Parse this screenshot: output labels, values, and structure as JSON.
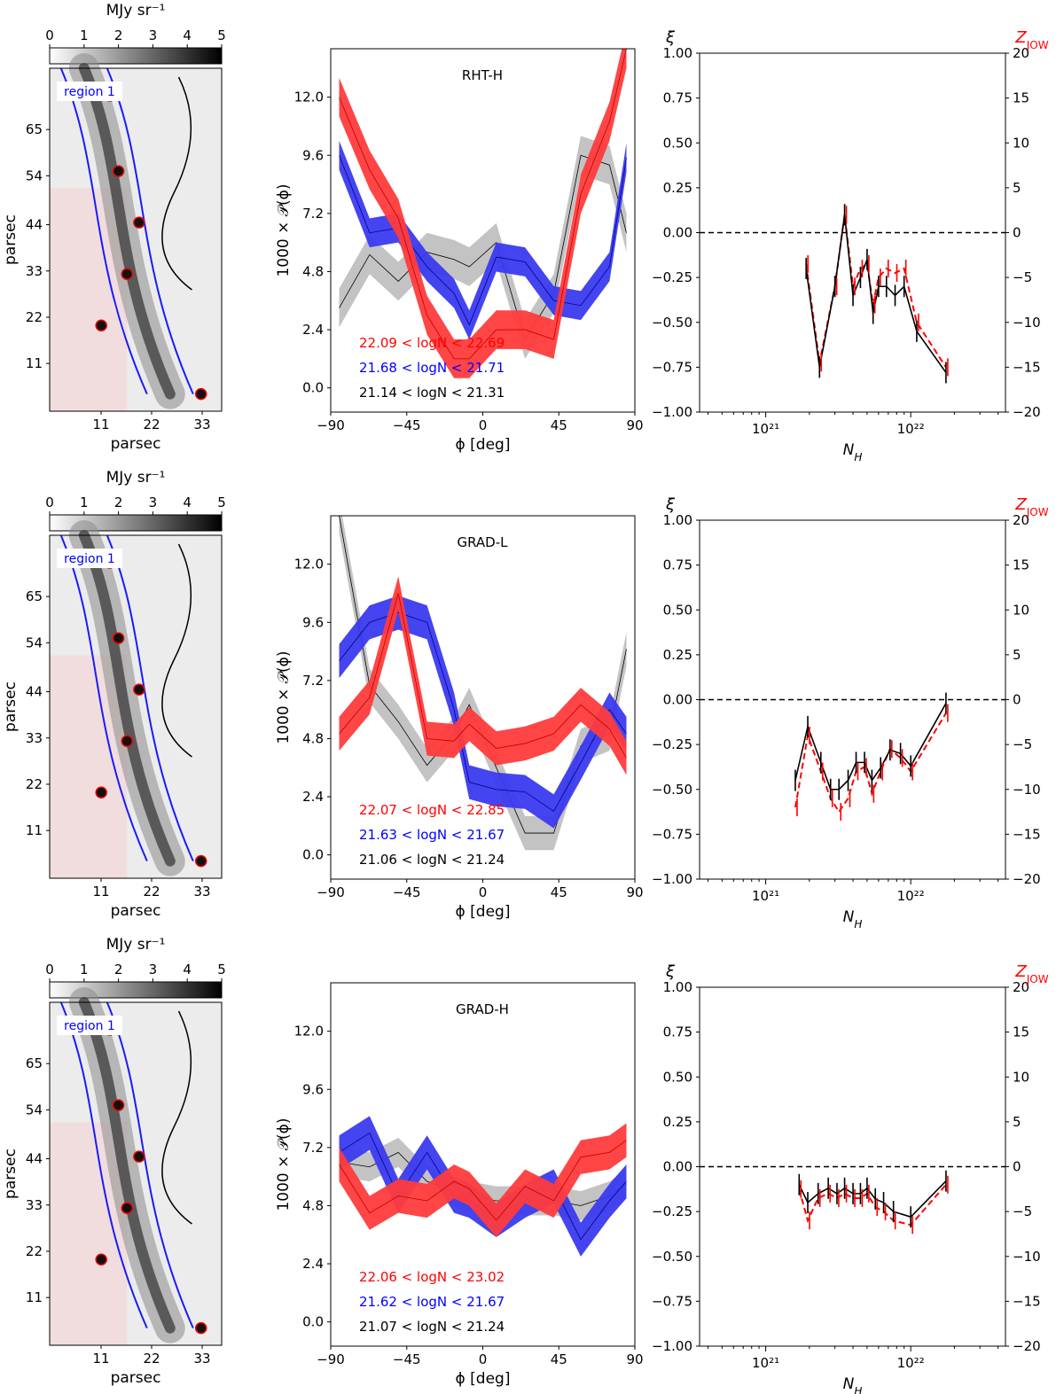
{
  "colorbar": {
    "label": "MJy sr⁻¹",
    "ticks": [
      "0",
      "1",
      "2",
      "3",
      "4",
      "5"
    ]
  },
  "maps": {
    "region_label": "region 1",
    "xlabel": "parsec",
    "ylabel": "parsec",
    "xticks": [
      "11",
      "22",
      "33"
    ],
    "yticks": [
      "65",
      "54",
      "44",
      "33",
      "22",
      "11"
    ]
  },
  "chart_data": [
    {
      "type": "area",
      "title": "RHT-H",
      "xlabel": "ϕ [deg]",
      "ylabel": "1000 × 𝒫(ϕ)",
      "xlim": [
        -90,
        90
      ],
      "ylim": [
        -1.0,
        14.0
      ],
      "xticks": [
        -90,
        -45,
        0,
        45,
        90
      ],
      "yticks": [
        "0.0",
        "2.4",
        "4.8",
        "7.2",
        "9.6",
        "12.0"
      ],
      "x": [
        -85,
        -67,
        -50,
        -33,
        -17,
        -8,
        8,
        25,
        42,
        58,
        75,
        85
      ],
      "series": [
        {
          "name": "22.09 < logN < 22.69",
          "color": "#ff0000",
          "values": [
            12.0,
            9.0,
            7.0,
            3.0,
            1.2,
            1.2,
            2.4,
            2.4,
            2.0,
            8.0,
            11.0,
            14.0
          ],
          "half_width": 0.8
        },
        {
          "name": "21.68 < logN < 21.71",
          "color": "#0000ff",
          "values": [
            9.6,
            6.4,
            6.6,
            5.0,
            3.9,
            2.6,
            5.4,
            5.2,
            3.6,
            3.4,
            5.0,
            9.5
          ],
          "half_width": 0.6
        },
        {
          "name": "21.14 < logN < 21.31",
          "color": "#000000",
          "values": [
            3.3,
            5.5,
            4.4,
            5.6,
            5.3,
            5.0,
            6.0,
            2.0,
            3.9,
            9.6,
            9.2,
            6.4
          ],
          "half_width": 0.8
        }
      ]
    },
    {
      "type": "scatter",
      "xlabel": "N_H",
      "ylabel": "ξ",
      "y2label": "Z_JOW",
      "xscale": "log",
      "xlim": [
        3.5e+20,
        4.5e+22
      ],
      "ylim": [
        -1.0,
        1.0
      ],
      "y2lim": [
        -20,
        20
      ],
      "yticks": [
        "1.00",
        "0.75",
        "0.50",
        "0.25",
        "0.00",
        "−0.25",
        "−0.50",
        "−0.75",
        "−1.00"
      ],
      "y2ticks": [
        "20",
        "15",
        "10",
        "5",
        "0",
        "−5",
        "−10",
        "−15",
        "−20"
      ],
      "xticks": [
        "10²¹",
        "10²²"
      ],
      "x": [
        1.9e+21,
        2.35e+21,
        3e+21,
        3.5e+21,
        4e+21,
        4.5e+21,
        5e+21,
        5.5e+21,
        6e+21,
        6.8e+21,
        7.8e+21,
        9e+21,
        1.1e+22,
        1.75e+22
      ],
      "xi": [
        -0.2,
        -0.75,
        -0.3,
        0.1,
        -0.35,
        -0.25,
        -0.15,
        -0.45,
        -0.3,
        -0.3,
        -0.35,
        -0.3,
        -0.55,
        -0.78
      ],
      "z": [
        -3.5,
        -14.5,
        -6.0,
        2.0,
        -6.0,
        -4.0,
        -3.5,
        -8.0,
        -5.0,
        -4.0,
        -4.5,
        -4.0,
        -10.0,
        -15.0
      ]
    },
    {
      "type": "area",
      "title": "GRAD-L",
      "xlabel": "ϕ [deg]",
      "ylabel": "1000 × 𝒫(ϕ)",
      "xlim": [
        -90,
        90
      ],
      "ylim": [
        -1.0,
        14.0
      ],
      "xticks": [
        -90,
        -45,
        0,
        45,
        90
      ],
      "yticks": [
        "0.0",
        "2.4",
        "4.8",
        "7.2",
        "9.6",
        "12.0"
      ],
      "x": [
        -85,
        -67,
        -50,
        -33,
        -17,
        -8,
        8,
        25,
        42,
        58,
        75,
        85
      ],
      "series": [
        {
          "name": "22.07 < logN < 22.85",
          "color": "#ff0000",
          "values": [
            5.0,
            6.5,
            10.8,
            4.8,
            4.7,
            5.4,
            4.4,
            4.6,
            5.0,
            6.2,
            5.2,
            4.0
          ],
          "half_width": 0.7
        },
        {
          "name": "21.63 < logN < 21.67",
          "color": "#0000ff",
          "values": [
            8.0,
            9.6,
            10.0,
            9.6,
            6.0,
            3.0,
            2.7,
            2.6,
            1.8,
            3.8,
            6.0,
            5.0
          ],
          "half_width": 0.7
        },
        {
          "name": "21.06 < logN < 21.24",
          "color": "#000000",
          "values": [
            14.0,
            7.0,
            5.5,
            3.7,
            5.0,
            6.2,
            3.6,
            0.9,
            0.9,
            4.5,
            5.0,
            8.5
          ],
          "half_width": 0.7
        }
      ]
    },
    {
      "type": "scatter",
      "xlabel": "N_H",
      "ylabel": "ξ",
      "y2label": "Z_JOW",
      "xscale": "log",
      "xlim": [
        3.5e+20,
        4.5e+22
      ],
      "ylim": [
        -1.0,
        1.0
      ],
      "y2lim": [
        -20,
        20
      ],
      "yticks": [
        "1.00",
        "0.75",
        "0.50",
        "0.25",
        "0.00",
        "−0.25",
        "−0.50",
        "−0.75",
        "−1.00"
      ],
      "y2ticks": [
        "20",
        "15",
        "10",
        "5",
        "0",
        "−5",
        "−10",
        "−15",
        "−20"
      ],
      "xticks": [
        "10²¹",
        "10²²"
      ],
      "x": [
        1.6e+21,
        1.95e+21,
        2.4e+21,
        2.8e+21,
        3.2e+21,
        3.7e+21,
        4.2e+21,
        4.8e+21,
        5.4e+21,
        6.2e+21,
        7.2e+21,
        8.5e+21,
        1e+22,
        1.75e+22
      ],
      "xi": [
        -0.45,
        -0.15,
        -0.35,
        -0.5,
        -0.5,
        -0.45,
        -0.35,
        -0.35,
        -0.45,
        -0.38,
        -0.28,
        -0.3,
        -0.37,
        -0.02
      ],
      "z": [
        -12.0,
        -4.0,
        -8.0,
        -11.0,
        -12.5,
        -11.0,
        -8.0,
        -7.5,
        -10.5,
        -8.0,
        -5.5,
        -6.5,
        -8.0,
        -1.5
      ]
    },
    {
      "type": "area",
      "title": "GRAD-H",
      "xlabel": "ϕ [deg]",
      "ylabel": "1000 × 𝒫(ϕ)",
      "xlim": [
        -90,
        90
      ],
      "ylim": [
        -1.0,
        14.0
      ],
      "xticks": [
        -90,
        -45,
        0,
        45,
        90
      ],
      "yticks": [
        "0.0",
        "2.4",
        "4.8",
        "7.2",
        "9.6",
        "12.0"
      ],
      "x": [
        -85,
        -67,
        -50,
        -33,
        -17,
        -8,
        8,
        25,
        42,
        58,
        75,
        85
      ],
      "series": [
        {
          "name": "22.06 < logN < 23.02",
          "color": "#ff0000",
          "values": [
            6.5,
            4.5,
            5.2,
            5.0,
            5.8,
            5.5,
            4.2,
            5.6,
            5.0,
            6.8,
            7.0,
            7.5
          ],
          "half_width": 0.7
        },
        {
          "name": "21.62 < logN < 21.67",
          "color": "#0000ff",
          "values": [
            7.0,
            7.8,
            5.2,
            7.0,
            5.2,
            5.0,
            4.2,
            5.0,
            5.6,
            3.4,
            5.0,
            5.8
          ],
          "half_width": 0.7
        },
        {
          "name": "21.07 < logN < 21.24",
          "color": "#000000",
          "values": [
            6.6,
            6.4,
            7.0,
            5.8,
            5.4,
            5.2,
            5.0,
            5.0,
            5.0,
            4.8,
            5.2,
            5.7
          ],
          "half_width": 0.6
        }
      ]
    },
    {
      "type": "scatter",
      "xlabel": "N_H",
      "ylabel": "ξ",
      "y2label": "Z_JOW",
      "xscale": "log",
      "xlim": [
        3.5e+20,
        4.5e+22
      ],
      "ylim": [
        -1.0,
        1.0
      ],
      "y2lim": [
        -20,
        20
      ],
      "yticks": [
        "1.00",
        "0.75",
        "0.50",
        "0.25",
        "0.00",
        "−0.25",
        "−0.50",
        "−0.75",
        "−1.00"
      ],
      "y2ticks": [
        "20",
        "15",
        "10",
        "5",
        "0",
        "−5",
        "−10",
        "−15",
        "−20"
      ],
      "xticks": [
        "10²¹",
        "10²²"
      ],
      "x": [
        1.7e+21,
        1.95e+21,
        2.3e+21,
        2.7e+21,
        3.1e+21,
        3.5e+21,
        4e+21,
        4.5e+21,
        5e+21,
        5.7e+21,
        6.5e+21,
        7.6e+21,
        1e+22,
        1.75e+22
      ],
      "xi": [
        -0.1,
        -0.2,
        -0.15,
        -0.12,
        -0.15,
        -0.12,
        -0.15,
        -0.15,
        -0.12,
        -0.18,
        -0.2,
        -0.25,
        -0.28,
        -0.08
      ],
      "z": [
        -2.5,
        -6.0,
        -3.5,
        -3.0,
        -3.5,
        -3.0,
        -3.5,
        -3.5,
        -3.0,
        -4.5,
        -5.0,
        -6.0,
        -6.5,
        -2.0
      ]
    }
  ]
}
